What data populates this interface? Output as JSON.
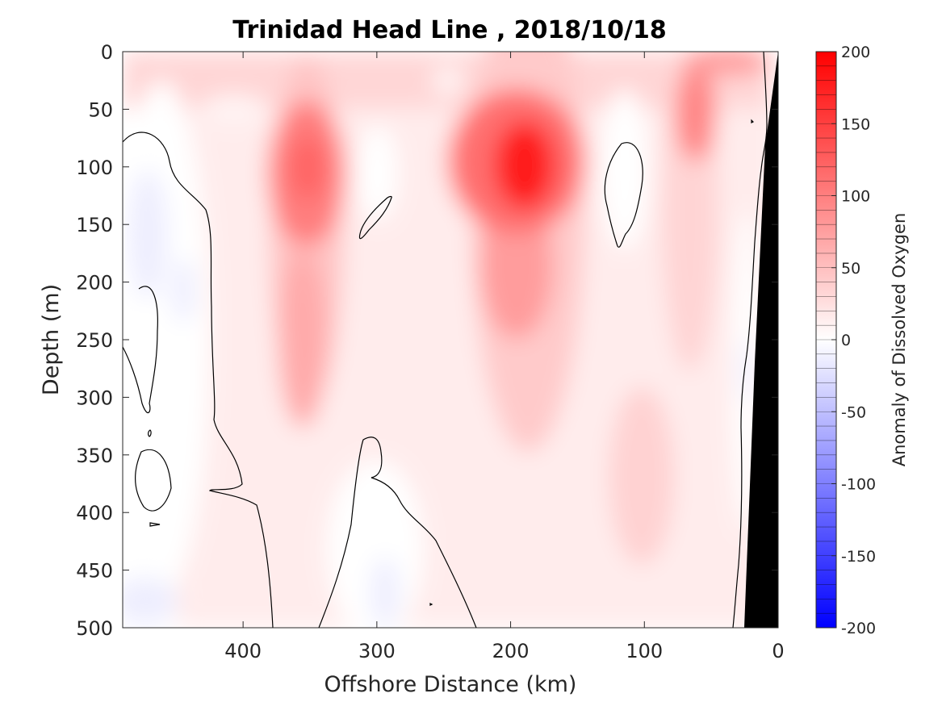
{
  "chart_data": {
    "type": "heatmap",
    "title": "Trinidad Head Line , 2018/10/18",
    "xlabel": "Offshore Distance (km)",
    "ylabel": "Depth (m)",
    "xlim": [
      490,
      0
    ],
    "x_reversed": true,
    "ylim": [
      0,
      500
    ],
    "y_reversed": true,
    "x_ticks": [
      400,
      300,
      200,
      100,
      0
    ],
    "y_ticks": [
      0,
      50,
      100,
      150,
      200,
      250,
      300,
      350,
      400,
      450,
      500
    ],
    "colorbar": {
      "label": "Anomaly of Dissolved Oxygen",
      "range": [
        -200,
        200
      ],
      "ticks": [
        200,
        150,
        100,
        50,
        0,
        -50,
        -100,
        -150,
        -200
      ],
      "levels": 40,
      "low_color": "#0000ff",
      "zero_color": "#ffffff",
      "high_color": "#ff0000"
    },
    "zero_contour_color": "#000000",
    "bathymetry_color": "#000000",
    "anomaly_features": [
      {
        "type": "maximum",
        "x": 190,
        "y": 100,
        "value": 200
      },
      {
        "type": "maximum",
        "x": 350,
        "y": 105,
        "value": 110
      },
      {
        "type": "maximum",
        "x": 60,
        "y": 60,
        "value": 115
      },
      {
        "type": "maximum",
        "x": 20,
        "y": 10,
        "value": 110
      },
      {
        "type": "maximum",
        "x": 355,
        "y": 300,
        "value": 60
      },
      {
        "type": "maximum",
        "x": 200,
        "y": 230,
        "value": 80
      },
      {
        "type": "maximum",
        "x": 100,
        "y": 400,
        "value": 45
      },
      {
        "type": "near-zero",
        "x": 115,
        "y": 120,
        "value": -10
      },
      {
        "type": "near-zero",
        "x": 285,
        "y": 150,
        "value": 0
      },
      {
        "type": "minimum",
        "x": 465,
        "y": 200,
        "value": -10
      },
      {
        "type": "minimum",
        "x": 475,
        "y": 480,
        "value": -10
      },
      {
        "type": "minimum",
        "x": 285,
        "y": 470,
        "value": -8
      }
    ]
  }
}
